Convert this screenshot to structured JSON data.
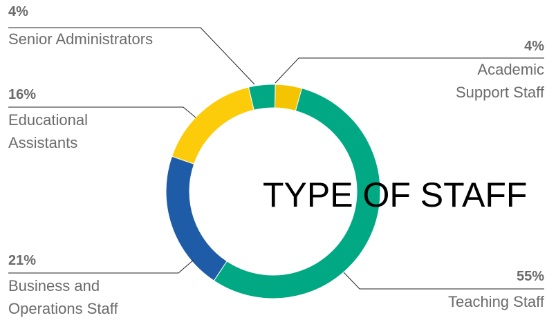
{
  "chart_data": {
    "type": "donut",
    "title": "TYPE OF STAFF",
    "categories": [
      "Academic Support Staff",
      "Teaching Staff",
      "Business and Operations Staff",
      "Educational Assistants",
      "Senior Administrators"
    ],
    "values": [
      4,
      55,
      21,
      16,
      4
    ],
    "value_labels": [
      "4%",
      "55%",
      "21%",
      "16%",
      "4%"
    ],
    "colors": [
      "#f5c400",
      "#00a884",
      "#1f5ca8",
      "#fccb0a",
      "#00a884"
    ]
  }
}
